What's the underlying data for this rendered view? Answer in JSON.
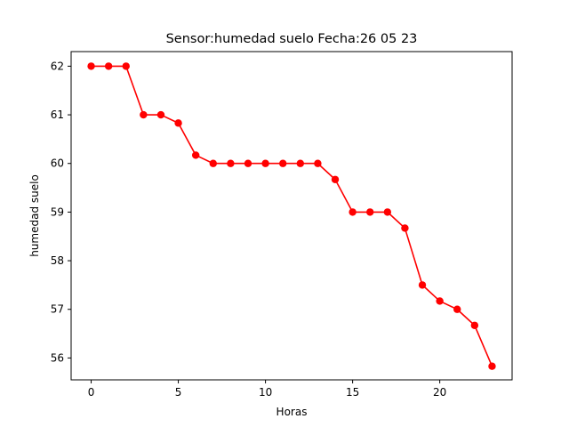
{
  "chart_data": {
    "type": "line",
    "title": "Sensor:humedad suelo Fecha:26 05 23",
    "xlabel": "Horas",
    "ylabel": "humedad suelo",
    "xlim": [
      -1.15,
      24.15
    ],
    "ylim": [
      55.55,
      62.3
    ],
    "xticks": [
      0,
      5,
      10,
      15,
      20
    ],
    "xtick_labels": [
      "0",
      "5",
      "10",
      "15",
      "20"
    ],
    "yticks": [
      56,
      57,
      58,
      59,
      60,
      61,
      62
    ],
    "ytick_labels": [
      "56",
      "57",
      "58",
      "59",
      "60",
      "61",
      "62"
    ],
    "grid": false,
    "series": [
      {
        "color": "#ff0000",
        "marker": "circle",
        "x": [
          0,
          1,
          2,
          3,
          4,
          5,
          6,
          7,
          8,
          9,
          10,
          11,
          12,
          13,
          14,
          15,
          16,
          17,
          18,
          19,
          20,
          21,
          22,
          23
        ],
        "y": [
          62,
          62,
          62,
          61,
          61,
          60.83,
          60.17,
          60,
          60,
          60,
          60,
          60,
          60,
          60,
          59.67,
          59,
          59,
          59,
          58.67,
          57.5,
          57.17,
          57,
          56.67,
          55.83
        ]
      }
    ]
  }
}
